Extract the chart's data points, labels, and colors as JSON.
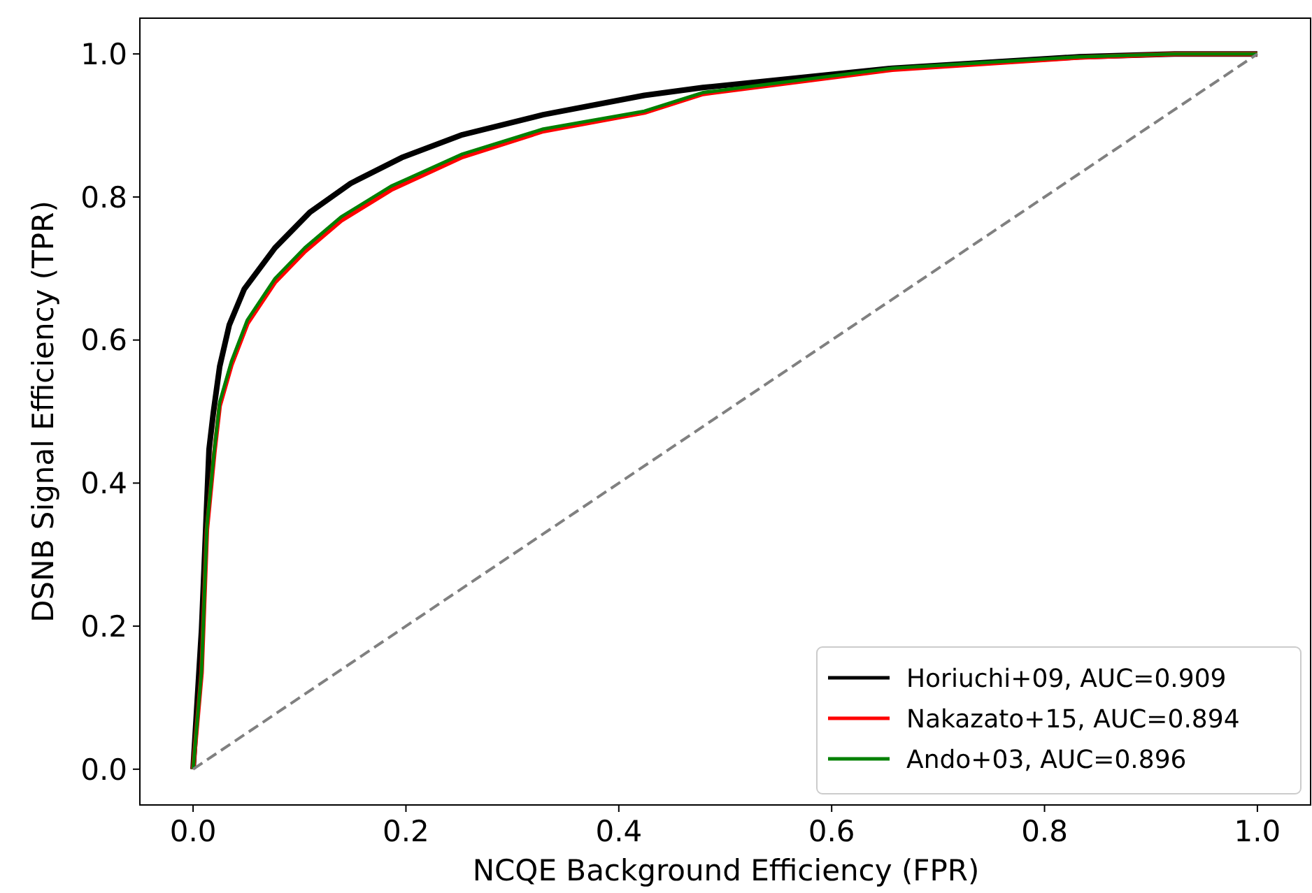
{
  "chart_data": {
    "type": "line",
    "xlabel": "NCQE Background Efficiency (FPR)",
    "ylabel": "DSNB Signal Efficiency (TPR)",
    "xlim": [
      -0.05,
      1.05
    ],
    "ylim": [
      -0.05,
      1.05
    ],
    "xticks": [
      {
        "value": 0,
        "label": "0.0"
      },
      {
        "value": 0.2,
        "label": "0.2"
      },
      {
        "value": 0.4,
        "label": "0.4"
      },
      {
        "value": 0.6,
        "label": "0.6"
      },
      {
        "value": 0.8,
        "label": "0.8"
      },
      {
        "value": 1,
        "label": "1.0"
      }
    ],
    "yticks": [
      {
        "value": 0,
        "label": "0.0"
      },
      {
        "value": 0.2,
        "label": "0.2"
      },
      {
        "value": 0.4,
        "label": "0.4"
      },
      {
        "value": 0.6,
        "label": "0.6"
      },
      {
        "value": 0.8,
        "label": "0.8"
      },
      {
        "value": 1,
        "label": "1.0"
      }
    ],
    "legend": "bottom right",
    "line_style": "solid",
    "series": [
      {
        "name": "Horiuchi+09, AUC=0.909",
        "color": "#000000",
        "x": [
          0,
          0.008,
          0.012,
          0.015,
          0.019,
          0.025,
          0.034,
          0.048,
          0.077,
          0.11,
          0.148,
          0.196,
          0.253,
          0.329,
          0.424,
          0.479,
          0.657,
          0.833,
          0.922,
          1
        ],
        "values": [
          0,
          0.196,
          0.34,
          0.447,
          0.498,
          0.563,
          0.621,
          0.671,
          0.729,
          0.779,
          0.819,
          0.855,
          0.887,
          0.915,
          0.942,
          0.953,
          0.98,
          0.996,
          1,
          1
        ]
      },
      {
        "name": "Nakazato+15, AUC=0.894",
        "color": "#ff0000",
        "x": [
          0,
          0.008,
          0.013,
          0.02,
          0.025,
          0.036,
          0.051,
          0.077,
          0.105,
          0.139,
          0.186,
          0.253,
          0.329,
          0.424,
          0.479,
          0.657,
          0.833,
          0.922,
          1
        ],
        "values": [
          0,
          0.135,
          0.335,
          0.443,
          0.508,
          0.565,
          0.623,
          0.681,
          0.724,
          0.767,
          0.81,
          0.856,
          0.892,
          0.918,
          0.944,
          0.978,
          0.995,
          1,
          1
        ]
      },
      {
        "name": "Ando+03, AUC=0.896",
        "color": "#008000",
        "x": [
          0,
          0.008,
          0.013,
          0.02,
          0.025,
          0.036,
          0.051,
          0.077,
          0.105,
          0.139,
          0.186,
          0.253,
          0.329,
          0.424,
          0.479,
          0.657,
          0.833,
          0.922,
          1
        ],
        "values": [
          0,
          0.138,
          0.34,
          0.447,
          0.513,
          0.57,
          0.628,
          0.686,
          0.729,
          0.772,
          0.815,
          0.86,
          0.895,
          0.92,
          0.946,
          0.98,
          0.996,
          1,
          1
        ]
      },
      {
        "color": "#808080",
        "line_style": "dashed",
        "x": [
          0,
          1
        ],
        "values": [
          0,
          1
        ]
      }
    ]
  }
}
